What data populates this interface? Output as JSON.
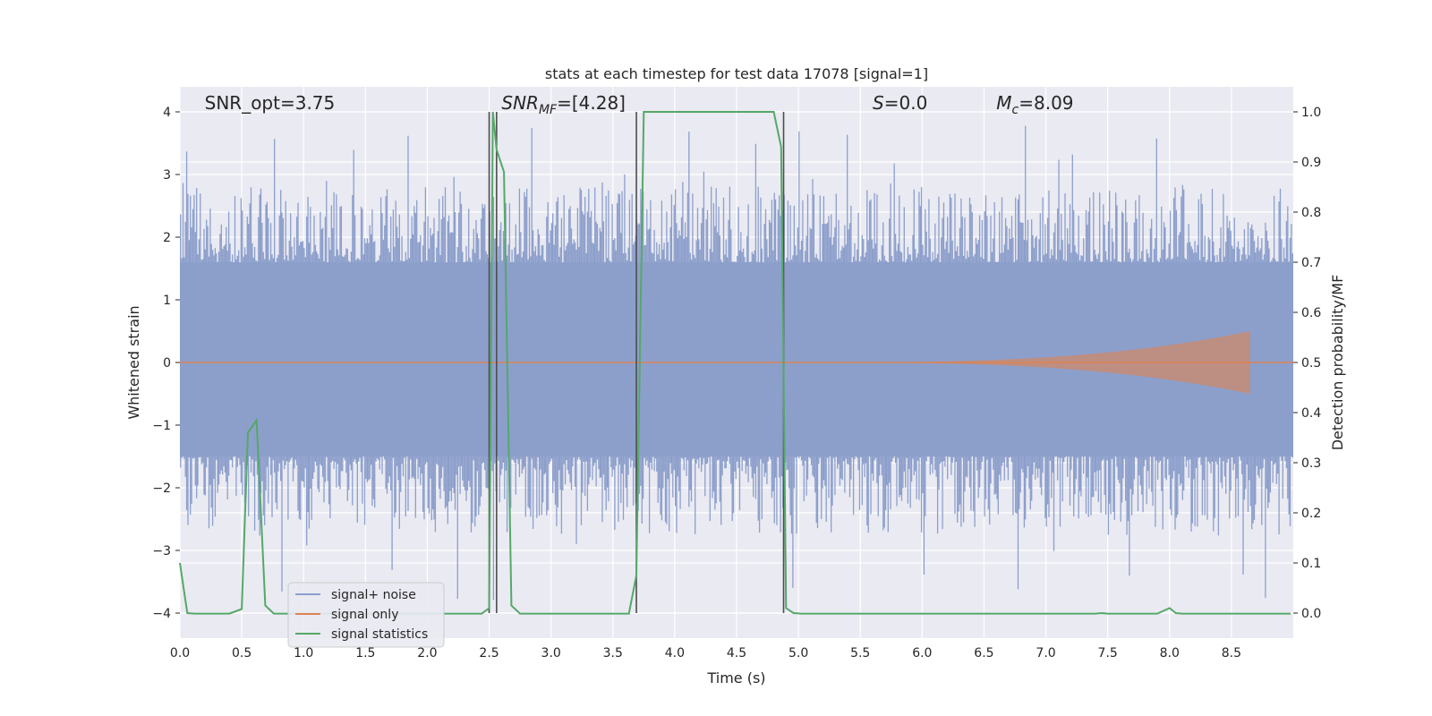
{
  "chart_data": {
    "type": "line",
    "title": "stats at each timestep for test data 17078 [signal=1]",
    "xlabel": "Time (s)",
    "ylabel_left": "Whitened strain",
    "ylabel_right": "Detection probability/MF",
    "xlim": [
      0,
      9.0
    ],
    "ylim_left": [
      -4.4,
      4.4
    ],
    "ylim_right": [
      -0.05,
      1.05
    ],
    "x_ticks": [
      0.0,
      0.5,
      1.0,
      1.5,
      2.0,
      2.5,
      3.0,
      3.5,
      4.0,
      4.5,
      5.0,
      5.5,
      6.0,
      6.5,
      7.0,
      7.5,
      8.0,
      8.5
    ],
    "x_tick_labels": [
      "0.0",
      "0.5",
      "1.0",
      "1.5",
      "2.0",
      "2.5",
      "3.0",
      "3.5",
      "4.0",
      "4.5",
      "5.0",
      "5.5",
      "6.0",
      "6.5",
      "7.0",
      "7.5",
      "8.0",
      "8.5"
    ],
    "y_ticks_left": [
      -4,
      -3,
      -2,
      -1,
      0,
      1,
      2,
      3,
      4
    ],
    "y_tick_labels_left": [
      "−4",
      "−3",
      "−2",
      "−1",
      "0",
      "1",
      "2",
      "3",
      "4"
    ],
    "y_ticks_right": [
      0.0,
      0.1,
      0.2,
      0.3,
      0.4,
      0.5,
      0.6,
      0.7,
      0.8,
      0.9,
      1.0
    ],
    "y_tick_labels_right": [
      "0.0",
      "0.1",
      "0.2",
      "0.3",
      "0.4",
      "0.5",
      "0.6",
      "0.7",
      "0.8",
      "0.9",
      "1.0"
    ],
    "grid": true,
    "legend_position": "lower-left",
    "annotations": [
      {
        "text": "SNR_opt=3.75",
        "x": 0.2,
        "y": 4.1
      },
      {
        "text": "SNR_MF=[4.28]",
        "x": 2.6,
        "y": 4.1
      },
      {
        "text": "S=0.0",
        "x": 5.6,
        "y": 4.1
      },
      {
        "text": "M_c=8.09",
        "x": 6.6,
        "y": 4.1
      }
    ],
    "vertical_lines_x": [
      2.5,
      2.56,
      3.69,
      4.88
    ],
    "series": [
      {
        "name": "signal+ noise",
        "color": "#8c9fcb",
        "axis": "left",
        "envelope": {
          "core_min": -1.5,
          "core_max": 1.6,
          "typical_peak": 2.7,
          "max_abs": 3.8
        }
      },
      {
        "name": "signal only",
        "color": "#dd8452",
        "axis": "left",
        "chirp": {
          "start_x": 5.0,
          "end_x": 8.65,
          "end_amplitude": 0.5
        }
      },
      {
        "name": "signal statistics",
        "color": "#55a868",
        "axis": "right",
        "x": [
          0.0,
          0.06,
          0.12,
          0.2,
          0.3,
          0.4,
          0.5,
          0.55,
          0.62,
          0.69,
          0.76,
          0.9,
          1.5,
          2.0,
          2.44,
          2.5,
          2.53,
          2.56,
          2.62,
          2.68,
          2.75,
          2.8,
          3.0,
          3.5,
          3.63,
          3.69,
          3.75,
          3.8,
          4.0,
          4.5,
          4.8,
          4.86,
          4.9,
          4.96,
          5.02,
          5.1,
          6.0,
          7.0,
          7.4,
          7.45,
          7.5,
          7.9,
          8.0,
          8.05,
          8.1,
          8.5,
          8.98
        ],
        "values": [
          0.1,
          0.0,
          -0.001,
          -0.001,
          -0.001,
          -0.001,
          0.008,
          0.36,
          0.385,
          0.015,
          -0.001,
          -0.001,
          -0.001,
          -0.001,
          -0.001,
          0.01,
          1.0,
          0.925,
          0.88,
          0.015,
          -0.001,
          -0.001,
          -0.001,
          -0.001,
          -0.001,
          0.075,
          1.0,
          1.0,
          1.0,
          1.0,
          1.0,
          0.93,
          0.01,
          0.0,
          -0.001,
          -0.001,
          -0.001,
          -0.001,
          -0.001,
          0.0,
          -0.001,
          -0.001,
          0.01,
          0.0,
          -0.001,
          -0.001,
          -0.001
        ]
      }
    ]
  }
}
